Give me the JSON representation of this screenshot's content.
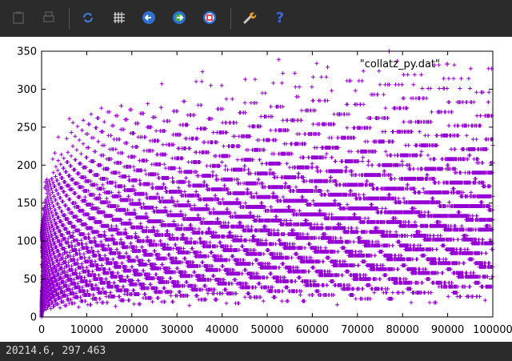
{
  "toolbar": {
    "buttons": [
      {
        "name": "copy-clipboard-icon",
        "enabled": false
      },
      {
        "name": "print-icon",
        "enabled": false
      },
      {
        "name": "replot-icon",
        "enabled": true
      },
      {
        "name": "grid-icon",
        "enabled": true
      },
      {
        "name": "previous-zoom-icon",
        "enabled": true
      },
      {
        "name": "next-zoom-icon",
        "enabled": true
      },
      {
        "name": "autoscale-icon",
        "enabled": true
      },
      {
        "name": "options-icon",
        "enabled": true
      },
      {
        "name": "help-icon",
        "enabled": true
      }
    ],
    "help_glyph": "?"
  },
  "status": {
    "coords": "20214.6, 297.463"
  },
  "colors": {
    "series": "#9400d3",
    "toolbar_bg": "#2b2b2b"
  },
  "chart_data": {
    "type": "scatter",
    "marker": "+",
    "series": [
      {
        "name": "\"collatz_py.dat\"",
        "n_points": 100000
      }
    ],
    "xlim": [
      0,
      100000
    ],
    "ylim": [
      0,
      350
    ],
    "xticks": [
      "0",
      "10000",
      "20000",
      "30000",
      "40000",
      "50000",
      "60000",
      "70000",
      "80000",
      "90000",
      "100000"
    ],
    "yticks": [
      "0",
      "50",
      "100",
      "150",
      "200",
      "250",
      "300",
      "350"
    ],
    "xlabel": "",
    "ylabel": "",
    "legend_position": "top-right",
    "grid": false
  }
}
